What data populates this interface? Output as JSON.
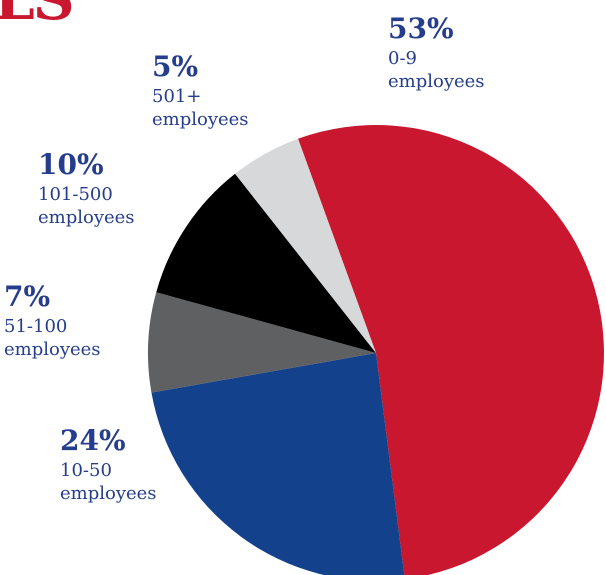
{
  "header_fragment": "LS",
  "chart_data": {
    "type": "pie",
    "title": "",
    "start_angle_deg": -20,
    "direction": "clockwise",
    "slices": [
      {
        "label": "0-9 employees",
        "range": "0-9",
        "unit": "employees",
        "value": 53,
        "display": "53%",
        "color": "#c8172e"
      },
      {
        "label": "10-50 employees",
        "range": "10-50",
        "unit": "employees",
        "value": 24,
        "display": "24%",
        "color": "#14418b"
      },
      {
        "label": "51-100 employees",
        "range": "51-100",
        "unit": "employees",
        "value": 7,
        "display": "7%",
        "color": "#5f6062"
      },
      {
        "label": "101-500 employees",
        "range": "101-500",
        "unit": "employees",
        "value": 10,
        "display": "10%",
        "color": "#000000"
      },
      {
        "label": "501+ employees",
        "range": "501+",
        "unit": "employees",
        "value": 5,
        "display": "5%",
        "color": "#d7d8da"
      }
    ],
    "label_color": "#253d8c"
  }
}
